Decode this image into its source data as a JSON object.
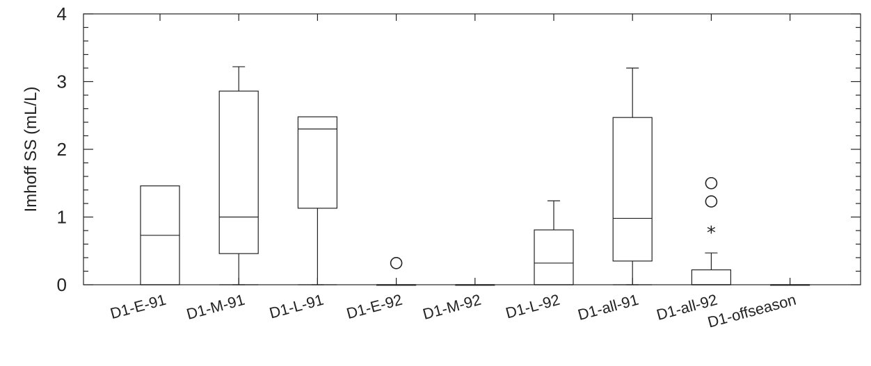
{
  "chart_data": {
    "type": "box",
    "title": "",
    "xlabel": "",
    "ylabel": "Imhoff SS (mL/L)",
    "ylim": [
      0,
      4
    ],
    "yticks": [
      0,
      1,
      2,
      3,
      4
    ],
    "grid": false,
    "categories": [
      "D1-E-91",
      "D1-M-91",
      "D1-L-91",
      "D1-E-92",
      "D1-M-92",
      "D1-L-92",
      "D1-all-91",
      "D1-all-92",
      "D1-offseason"
    ],
    "boxes": [
      {
        "category": "D1-E-91",
        "whisker_low": 0,
        "q1": 0,
        "median": 0.73,
        "q3": 1.46,
        "whisker_high": 1.46,
        "outliers": []
      },
      {
        "category": "D1-M-91",
        "whisker_low": 0,
        "q1": 0.46,
        "median": 1.0,
        "q3": 2.86,
        "whisker_high": 3.22,
        "outliers": []
      },
      {
        "category": "D1-L-91",
        "whisker_low": 0,
        "q1": 1.13,
        "median": 2.3,
        "q3": 2.48,
        "whisker_high": 2.48,
        "outliers": []
      },
      {
        "category": "D1-E-92",
        "whisker_low": 0,
        "q1": 0,
        "median": 0,
        "q3": 0,
        "whisker_high": 0,
        "outliers": [
          {
            "value": 0.32,
            "marker": "circle"
          }
        ]
      },
      {
        "category": "D1-M-92",
        "whisker_low": 0,
        "q1": 0,
        "median": 0,
        "q3": 0,
        "whisker_high": 0,
        "outliers": []
      },
      {
        "category": "D1-L-92",
        "whisker_low": 0,
        "q1": 0,
        "median": 0.32,
        "q3": 0.81,
        "whisker_high": 1.24,
        "outliers": []
      },
      {
        "category": "D1-all-91",
        "whisker_low": 0,
        "q1": 0.35,
        "median": 0.98,
        "q3": 2.47,
        "whisker_high": 3.2,
        "outliers": []
      },
      {
        "category": "D1-all-92",
        "whisker_low": 0,
        "q1": 0,
        "median": 0,
        "q3": 0.22,
        "whisker_high": 0.47,
        "outliers": [
          {
            "value": 0.81,
            "marker": "star"
          },
          {
            "value": 1.23,
            "marker": "circle"
          },
          {
            "value": 1.5,
            "marker": "circle"
          }
        ]
      },
      {
        "category": "D1-offseason",
        "whisker_low": 0,
        "q1": 0,
        "median": 0,
        "q3": 0,
        "whisker_high": 0,
        "outliers": []
      }
    ]
  }
}
